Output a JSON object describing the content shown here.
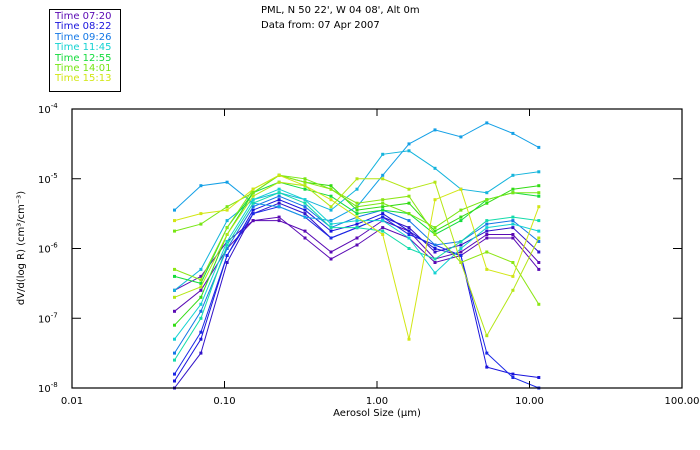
{
  "header": {
    "location": "PML, N 50 22', W 04 08', Alt 0m",
    "date": "Data from: 07 Apr 2007"
  },
  "legend": [
    {
      "label": "Time 07:20",
      "color": "#5a0ab4"
    },
    {
      "label": "Time 08:22",
      "color": "#1a14dc"
    },
    {
      "label": "Time 09:26",
      "color": "#1478e6"
    },
    {
      "label": "Time 11:45",
      "color": "#14d2d2"
    },
    {
      "label": "Time 12:55",
      "color": "#14dc3c"
    },
    {
      "label": "Time 14:01",
      "color": "#78e614"
    },
    {
      "label": "Time 15:13",
      "color": "#d2e614"
    }
  ],
  "chart_data": {
    "type": "line",
    "title": "PML, N 50 22', W 04 08', Alt 0m",
    "subtitle": "Data from: 07 Apr 2007",
    "xlabel": "Aerosol Size (µm)",
    "ylabel": "dV/d(log R) (cm³/cm⁻³)",
    "xscale": "log",
    "yscale": "log",
    "xlim": [
      0.01,
      100
    ],
    "ylim": [
      1e-08,
      0.0001
    ],
    "x_tick_labels": [
      "0.01",
      "0.10",
      "1.00",
      "10.00",
      "100.00"
    ],
    "x_tick_values": [
      0.01,
      0.1,
      1,
      10,
      100
    ],
    "y_tick_labels": [
      {
        "base": "10",
        "exp": "-4"
      },
      {
        "base": "10",
        "exp": "-5"
      },
      {
        "base": "10",
        "exp": "-6"
      },
      {
        "base": "10",
        "exp": "-7"
      },
      {
        "base": "10",
        "exp": "-8"
      }
    ],
    "y_tick_values": [
      0.0001,
      1e-05,
      1e-06,
      1e-07,
      1e-08
    ],
    "x": [
      0.047,
      0.07,
      0.104,
      0.154,
      0.228,
      0.337,
      0.499,
      0.739,
      1.09,
      1.62,
      2.4,
      3.55,
      5.25,
      7.78,
      11.5
    ],
    "series": [
      {
        "name": "Time 07:20",
        "color": "#5a0ab4",
        "log10_y": [
          -6.6,
          -6.4,
          -5.9,
          -5.6,
          -5.6,
          -5.75,
          -6.05,
          -5.85,
          -5.6,
          -5.75,
          -6.15,
          -6.05,
          -5.8,
          -5.8,
          -6.2
        ]
      },
      {
        "name": "Time 07:20",
        "color": "#5a0ab4",
        "log10_y": [
          -6.9,
          -6.6,
          -6.0,
          -5.6,
          -5.55,
          -5.85,
          -6.15,
          -5.95,
          -5.7,
          -5.85,
          -6.2,
          -6.1,
          -5.85,
          -5.85,
          -6.3
        ]
      },
      {
        "name": "Time 08:22",
        "color": "#3214c8",
        "log10_y": [
          -8.0,
          -7.5,
          -6.2,
          -5.5,
          -5.35,
          -5.5,
          -5.85,
          -5.7,
          -5.55,
          -5.7,
          -6.05,
          -5.95,
          -5.75,
          -5.7,
          -6.05
        ]
      },
      {
        "name": "Time 08:22",
        "color": "#1a14dc",
        "log10_y": [
          -7.9,
          -7.3,
          -6.1,
          -5.45,
          -5.3,
          -5.45,
          -5.75,
          -5.65,
          -5.5,
          -5.75,
          -6.0,
          -6.1,
          -7.7,
          -7.8,
          -7.85
        ]
      },
      {
        "name": "Time 08:22",
        "color": "#1a28e6",
        "log10_y": [
          -7.8,
          -7.2,
          -6.1,
          -5.5,
          -5.4,
          -5.55,
          -5.85,
          -5.7,
          -5.55,
          -5.8,
          -5.95,
          -6.1,
          -7.5,
          -7.85,
          -8.0
        ]
      },
      {
        "name": "Time 09:26",
        "color": "#1478e6",
        "log10_y": [
          -7.5,
          -6.9,
          -6.0,
          -5.4,
          -5.25,
          -5.4,
          -5.7,
          -5.55,
          -5.45,
          -5.6,
          -5.95,
          -5.9,
          -5.65,
          -5.6,
          -5.9
        ]
      },
      {
        "name": "Time 09:26",
        "color": "#14a0e6",
        "log10_y": [
          -5.45,
          -5.1,
          -5.05,
          -5.35,
          -5.4,
          -5.55,
          -5.6,
          -5.4,
          -4.95,
          -4.5,
          -4.3,
          -4.4,
          -4.2,
          -4.35,
          -4.55
        ]
      },
      {
        "name": "Time 09:26",
        "color": "#14b4dc",
        "log10_y": [
          -6.6,
          -6.3,
          -5.6,
          -5.3,
          -5.2,
          -5.3,
          -5.45,
          -5.15,
          -4.65,
          -4.6,
          -4.85,
          -5.15,
          -5.2,
          -4.95,
          -4.9
        ]
      },
      {
        "name": "Time 11:45",
        "color": "#14d2d2",
        "log10_y": [
          -7.3,
          -6.8,
          -5.9,
          -5.3,
          -5.15,
          -5.3,
          -5.65,
          -5.6,
          -5.6,
          -5.85,
          -6.35,
          -6.0,
          -5.7,
          -5.65,
          -5.75
        ]
      },
      {
        "name": "Time 11:45",
        "color": "#14dcaa",
        "log10_y": [
          -7.6,
          -7.0,
          -5.95,
          -5.35,
          -5.2,
          -5.35,
          -5.7,
          -5.7,
          -5.75,
          -6.0,
          -6.15,
          -5.9,
          -5.6,
          -5.55,
          -5.6
        ]
      },
      {
        "name": "Time 12:55",
        "color": "#14dc3c",
        "log10_y": [
          -6.4,
          -6.5,
          -5.7,
          -5.2,
          -5.05,
          -5.15,
          -5.25,
          -5.5,
          -5.45,
          -5.5,
          -5.8,
          -5.6,
          -5.3,
          -5.2,
          -5.25
        ]
      },
      {
        "name": "Time 12:55",
        "color": "#32dc14",
        "log10_y": [
          -7.1,
          -6.7,
          -5.8,
          -5.2,
          -4.95,
          -5.05,
          -5.1,
          -5.45,
          -5.4,
          -5.35,
          -5.75,
          -5.55,
          -5.35,
          -5.15,
          -5.1
        ]
      },
      {
        "name": "Time 14:01",
        "color": "#78e614",
        "log10_y": [
          -5.75,
          -5.65,
          -5.4,
          -5.2,
          -4.95,
          -5.0,
          -5.15,
          -5.4,
          -5.35,
          -5.5,
          -5.7,
          -5.45,
          -5.3,
          -5.2,
          -5.2
        ]
      },
      {
        "name": "Time 14:01",
        "color": "#8ce614",
        "log10_y": [
          -6.3,
          -6.45,
          -5.7,
          -5.15,
          -4.95,
          -5.05,
          -5.15,
          -5.35,
          -5.3,
          -5.25,
          -5.8,
          -6.2,
          -6.05,
          -6.2,
          -6.8
        ]
      },
      {
        "name": "Time 15:13",
        "color": "#d2e614",
        "log10_y": [
          -5.6,
          -5.5,
          -5.45,
          -5.15,
          -4.95,
          -5.1,
          -5.3,
          -5.55,
          -5.8,
          -7.3,
          -5.3,
          -5.15,
          -6.3,
          -6.4,
          -5.4
        ]
      },
      {
        "name": "Time 15:13",
        "color": "#b4e614",
        "log10_y": [
          -6.7,
          -6.55,
          -5.8,
          -5.25,
          -5.05,
          -5.1,
          -5.4,
          -5.0,
          -5.0,
          -5.15,
          -5.05,
          -6.2,
          -7.25,
          -6.6,
          -5.85
        ]
      }
    ]
  }
}
